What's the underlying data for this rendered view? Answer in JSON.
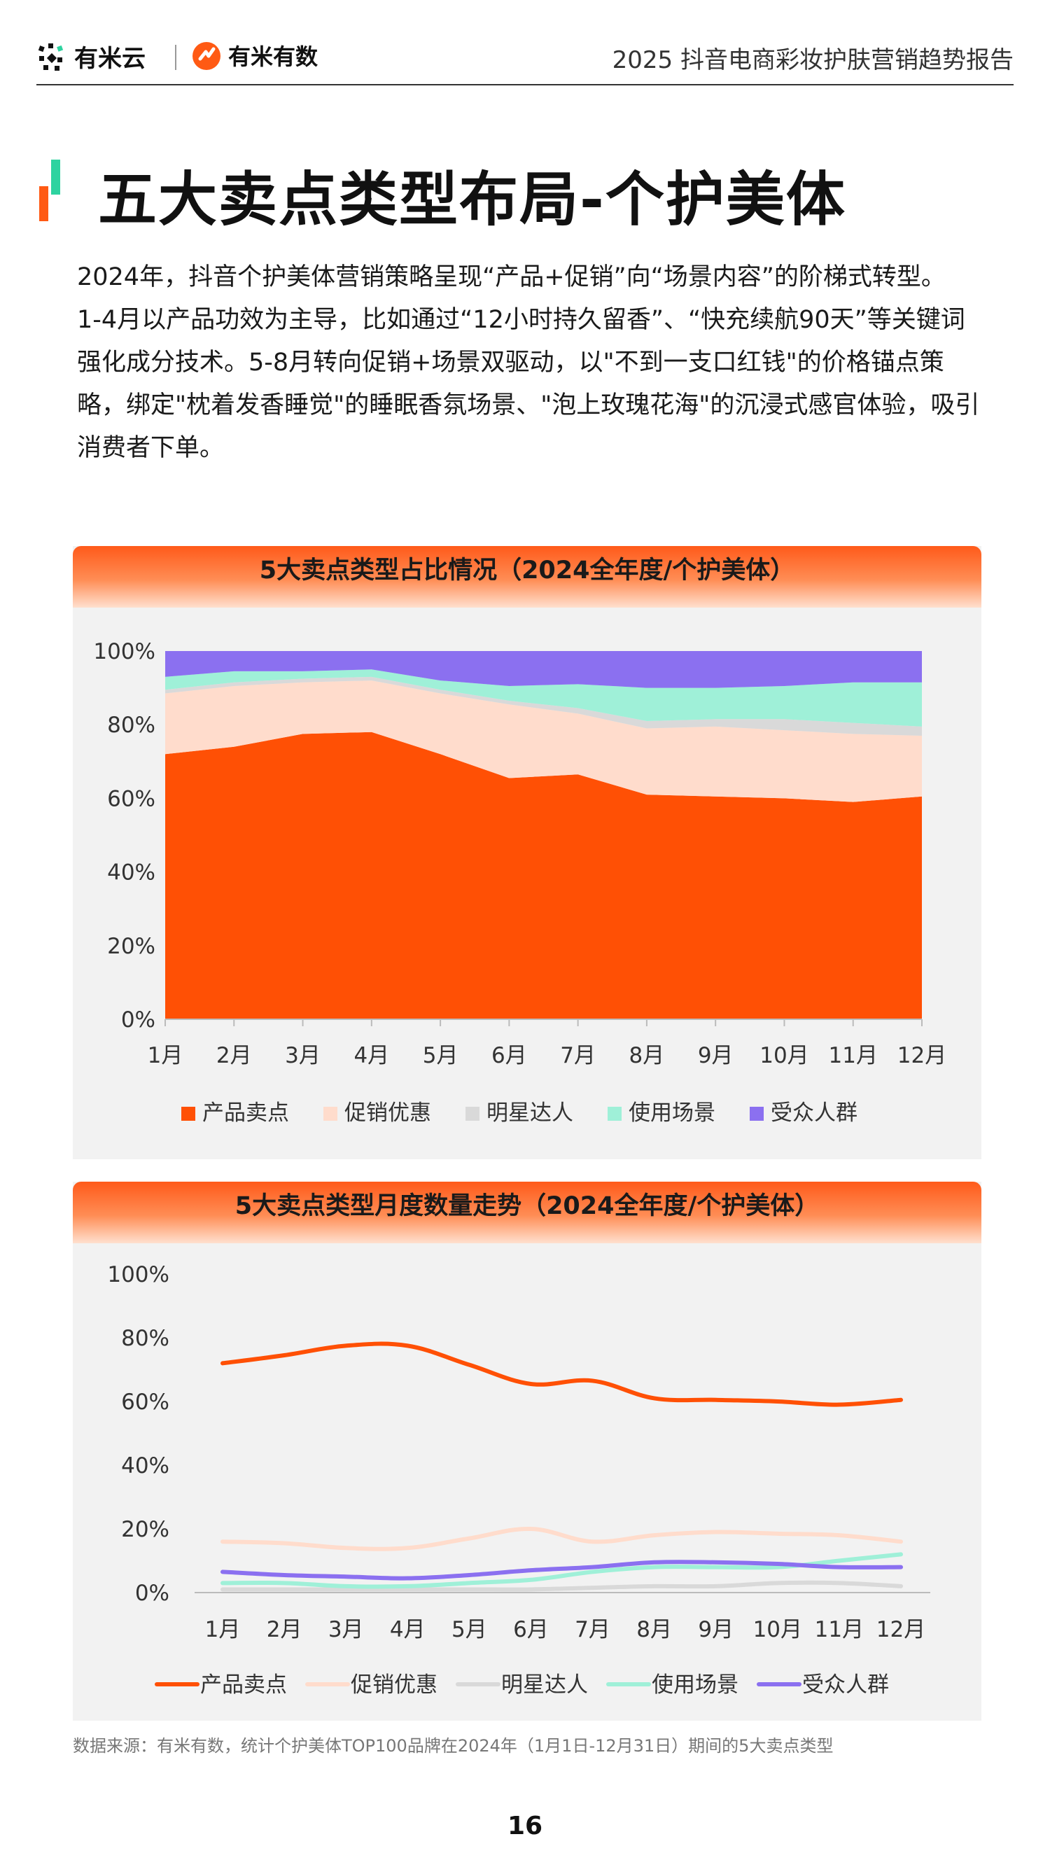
{
  "header": {
    "logo1_text": "有米云",
    "logo2_text": "有米有数",
    "report_title": "2025 抖音电商彩妆护肤营销趋势报告"
  },
  "page": {
    "title": "五大卖点类型布局-个护美体",
    "paragraphs": [
      "2024年，抖音个护美体营销策略呈现“产品+促销”向“场景内容”的阶梯式转型。",
      "1-4月以产品功效为主导，比如通过“12小时持久留香”、“快充续航90天”等关键词强化成分技术。5-8月转向促销+场景双驱动，以\"不到一支口红钱\"的价格锚点策略，绑定\"枕着发香睡觉\"的睡眠香氛场景、\"泡上玫瑰花海\"的沉浸式感官体验，吸引消费者下单。"
    ],
    "source": "数据来源：有米有数，统计个护美体TOP100品牌在2024年（1月1日-12月31日）期间的5大卖点类型",
    "page_number": "16"
  },
  "colors": {
    "产品卖点": "#ff5005",
    "促销优惠": "#ffdccc",
    "明星达人": "#d9d9d9",
    "使用场景": "#9ff0d8",
    "受众人群": "#8b70f0"
  },
  "chart_data": [
    {
      "type": "area",
      "stacked": true,
      "title": "5大卖点类型占比情况（2024全年度/个护美体）",
      "categories": [
        "1月",
        "2月",
        "3月",
        "4月",
        "5月",
        "6月",
        "7月",
        "8月",
        "9月",
        "10月",
        "11月",
        "12月"
      ],
      "yticks": [
        "0%",
        "20%",
        "40%",
        "60%",
        "80%",
        "100%"
      ],
      "ylim": [
        0,
        100
      ],
      "legend_position": "bottom",
      "series": [
        {
          "name": "产品卖点",
          "values": [
            72,
            74,
            77.5,
            78,
            72,
            65.5,
            66.5,
            61,
            60.5,
            60,
            59,
            60.5
          ]
        },
        {
          "name": "促销优惠",
          "values": [
            16.5,
            16.5,
            14,
            14,
            16.5,
            20,
            16.5,
            18,
            19,
            18.5,
            18.5,
            16.5
          ]
        },
        {
          "name": "明星达人",
          "values": [
            1,
            1,
            1,
            1,
            1,
            1,
            1.5,
            2,
            2,
            3,
            3,
            2.5
          ]
        },
        {
          "name": "使用场景",
          "values": [
            3.5,
            3,
            2,
            2,
            2.5,
            4,
            6.5,
            9,
            8.5,
            9,
            11,
            12
          ]
        },
        {
          "name": "受众人群",
          "values": [
            7,
            5.5,
            5.5,
            5,
            8,
            9.5,
            9,
            10,
            10,
            9.5,
            8.5,
            8.5
          ]
        }
      ]
    },
    {
      "type": "line",
      "title": "5大卖点类型月度数量走势（2024全年度/个护美体）",
      "categories": [
        "1月",
        "2月",
        "3月",
        "4月",
        "5月",
        "6月",
        "7月",
        "8月",
        "9月",
        "10月",
        "11月",
        "12月"
      ],
      "yticks": [
        "0%",
        "20%",
        "40%",
        "60%",
        "80%",
        "100%"
      ],
      "ylim": [
        0,
        100
      ],
      "legend_position": "bottom",
      "series": [
        {
          "name": "产品卖点",
          "values": [
            72,
            74.5,
            77.5,
            77.5,
            71.5,
            65.5,
            66.5,
            61,
            60.5,
            60,
            59,
            60.5
          ]
        },
        {
          "name": "促销优惠",
          "values": [
            16,
            15.5,
            14,
            14,
            17,
            20,
            16,
            18,
            19,
            18.5,
            18,
            16
          ]
        },
        {
          "name": "明星达人",
          "values": [
            1,
            1,
            1,
            1,
            1,
            1,
            1.5,
            2,
            2,
            3,
            3,
            2
          ]
        },
        {
          "name": "使用场景",
          "values": [
            3,
            3,
            2,
            2,
            3,
            4,
            6.5,
            8,
            8,
            8,
            10,
            12
          ]
        },
        {
          "name": "受众人群",
          "values": [
            6.5,
            5.5,
            5,
            4.5,
            5.5,
            7,
            8,
            9.5,
            9.5,
            9,
            8,
            8
          ]
        }
      ]
    }
  ]
}
